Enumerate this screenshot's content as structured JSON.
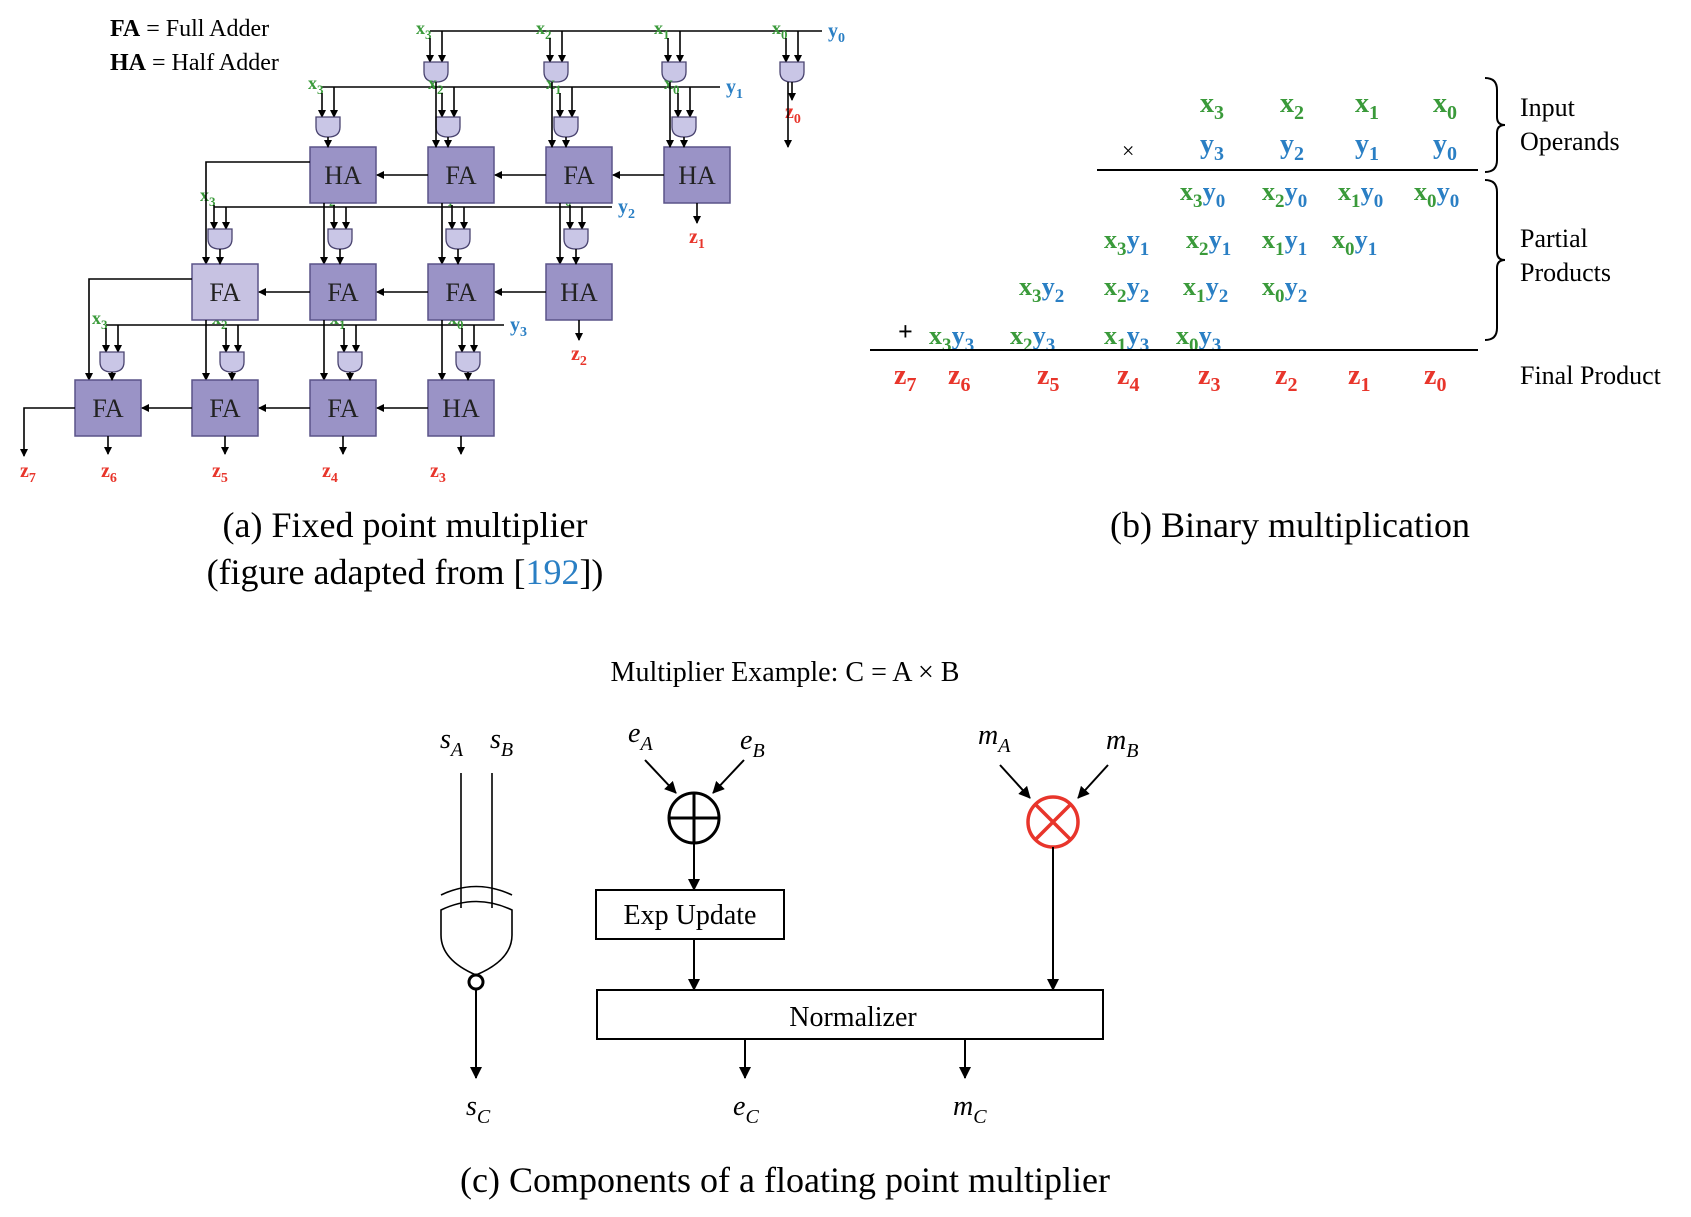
{
  "panel_a": {
    "legend_fa_abbr": "FA",
    "legend_fa_text": " = Full Adder",
    "legend_ha_abbr": "HA",
    "legend_ha_text": " = Half Adder",
    "caption_line1": "(a) Fixed point multiplier",
    "caption_line2_pre": "(figure adapted from [",
    "caption_ref": "192",
    "caption_line2_post": "])",
    "x_inputs": [
      "x",
      "x",
      "x",
      "x"
    ],
    "x_subs": [
      "3",
      "2",
      "1",
      "0"
    ],
    "y_letter": "y",
    "z_letter": "z",
    "rows": [
      [
        "HA",
        "FA",
        "FA",
        "HA"
      ],
      [
        "FA",
        "FA",
        "FA",
        "HA"
      ],
      [
        "FA",
        "FA",
        "FA",
        "HA"
      ]
    ]
  },
  "panel_b": {
    "caption": "(b) Binary multiplication",
    "times_sign": "×",
    "plus_sign": "+",
    "brace_input_line1": "Input",
    "brace_input_line2": "Operands",
    "brace_partial_line1": "Partial",
    "brace_partial_line2": "Products",
    "final_product": "Final Product"
  },
  "panel_c": {
    "title": "Multiplier Example: C = A × B",
    "caption": "(c) Components of a floating point multiplier",
    "exp_update": "Exp Update",
    "normalizer": "Normalizer",
    "s_letter": "s",
    "e_letter": "e",
    "m_letter": "m",
    "sub_a": "A",
    "sub_b": "B",
    "sub_c": "C",
    "accent_color": "#e8352b"
  },
  "colors": {
    "x_green": "#3a9a3a",
    "y_blue": "#2a7fc4",
    "z_red": "#e8352b",
    "adder_fill": "#9a93c6",
    "adder_light": "#c7c2e2"
  }
}
